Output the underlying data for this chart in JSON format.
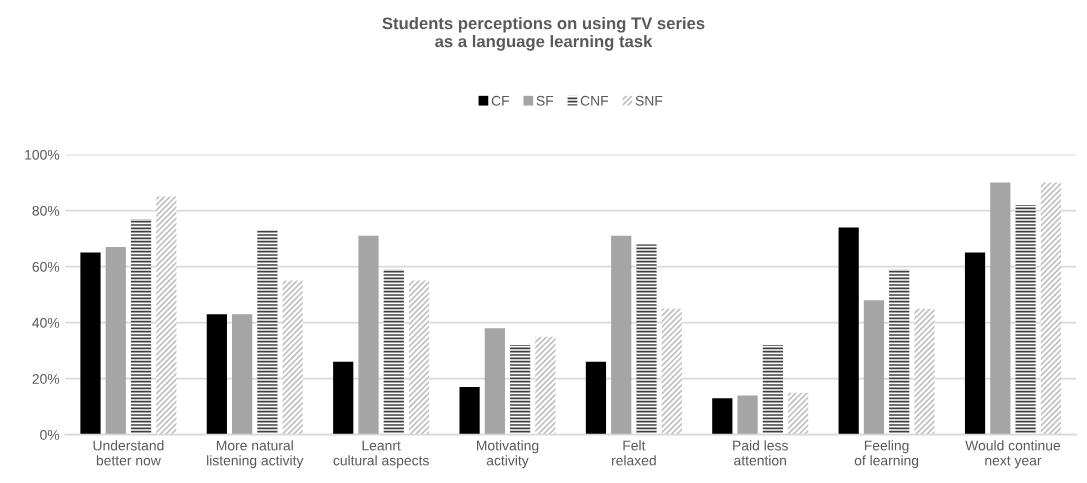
{
  "chart_data": {
    "type": "bar",
    "title": "Students perceptions on using TV series\nas a language learning task",
    "categories": [
      "Understand\nbetter now",
      "More natural\nlistening activity",
      "Leanrt\ncultural aspects",
      "Motivating\nactivity",
      "Felt\nrelaxed",
      "Paid less\nattention",
      "Feeling\nof learning",
      "Would continue\nnext year"
    ],
    "series": [
      {
        "name": "CF",
        "color": "#000000",
        "values": [
          65,
          43,
          26,
          17,
          26,
          13,
          74,
          65
        ]
      },
      {
        "name": "SF",
        "color": "#a5a5a5",
        "values": [
          67,
          43,
          71,
          38,
          71,
          14,
          48,
          90
        ]
      },
      {
        "name": "CNF",
        "color": "#404040",
        "values": [
          77,
          73,
          59,
          32,
          68,
          32,
          59,
          82
        ]
      },
      {
        "name": "SNF",
        "color": "#bfbfbf",
        "values": [
          85,
          55,
          55,
          35,
          45,
          15,
          45,
          90
        ]
      }
    ],
    "ylim": [
      0,
      100
    ],
    "yticks": [
      {
        "value": 0,
        "label": "0%"
      },
      {
        "value": 20,
        "label": "20%"
      },
      {
        "value": 40,
        "label": "40%"
      },
      {
        "value": 60,
        "label": "60%"
      },
      {
        "value": 80,
        "label": "80%"
      },
      {
        "value": 100,
        "label": "100%"
      }
    ],
    "grid": "y",
    "legend": "top"
  }
}
